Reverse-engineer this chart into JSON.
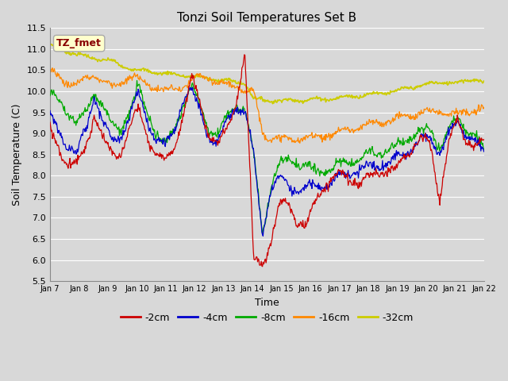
{
  "title": "Tonzi Soil Temperatures Set B",
  "xlabel": "Time",
  "ylabel": "Soil Temperature (C)",
  "ylim": [
    5.5,
    11.5
  ],
  "tick_labels": [
    "Jan 7",
    "Jan 8",
    "Jan 9",
    "Jan 10",
    "Jan 11",
    "Jan 12",
    "Jan 13",
    "Jan 14",
    "Jan 15",
    "Jan 16",
    "Jan 17",
    "Jan 18",
    "Jan 19",
    "Jan 20",
    "Jan 21",
    "Jan 22"
  ],
  "legend_label": "TZ_fmet",
  "legend_box_color": "#ffffcc",
  "legend_box_edge": "#aaaaaa",
  "legend_text_color": "#880000",
  "series_labels": [
    "-2cm",
    "-4cm",
    "-8cm",
    "-16cm",
    "-32cm"
  ],
  "series_colors": [
    "#cc0000",
    "#0000cc",
    "#00aa00",
    "#ff8800",
    "#cccc00"
  ],
  "fig_bg_color": "#d8d8d8",
  "plot_bg_color": "#d8d8d8",
  "yticks": [
    5.5,
    6.0,
    6.5,
    7.0,
    7.5,
    8.0,
    8.5,
    9.0,
    9.5,
    10.0,
    10.5,
    11.0,
    11.5
  ]
}
